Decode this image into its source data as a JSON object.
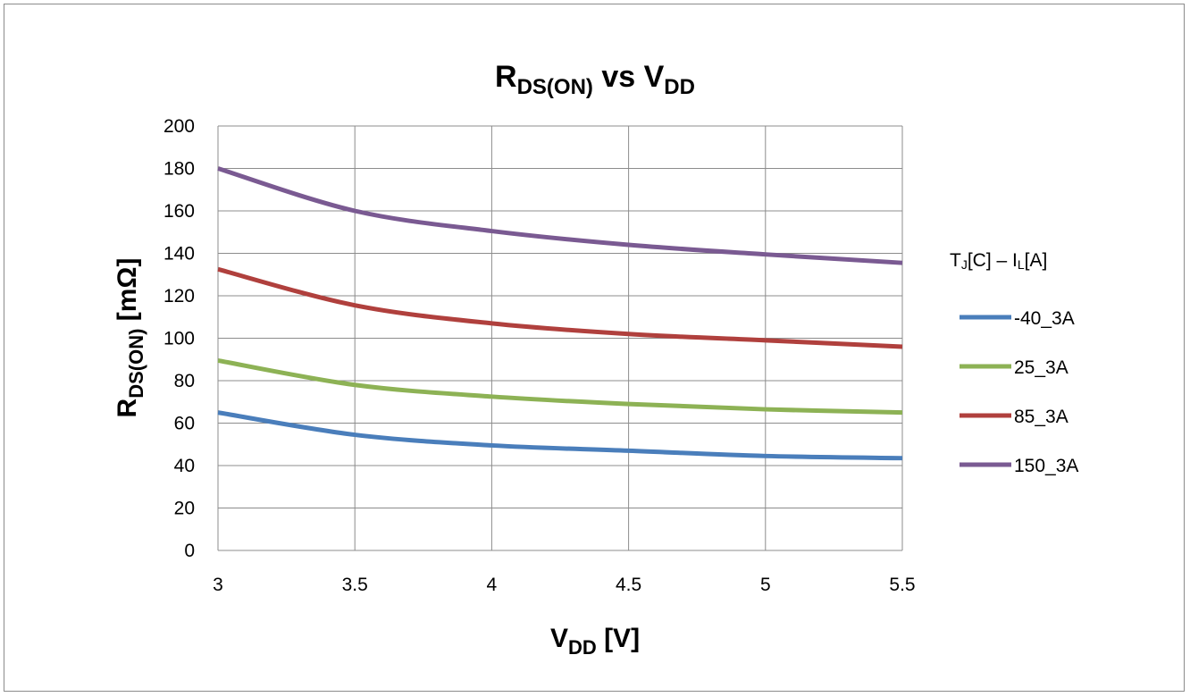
{
  "chart_data": {
    "type": "line",
    "title": {
      "main": "R",
      "main_sub": "DS(ON)",
      "mid": " vs V",
      "mid_sub": "DD"
    },
    "xlabel": {
      "main": "V",
      "sub": "DD",
      "unit": " [V]"
    },
    "ylabel": {
      "main": "R",
      "sub": "DS(ON)",
      "unit": " [mΩ]"
    },
    "x": [
      3,
      3.5,
      4,
      4.5,
      5,
      5.5
    ],
    "xlim": [
      3,
      5.5
    ],
    "ylim": [
      0,
      200
    ],
    "xticks": [
      "3",
      "3.5",
      "4",
      "4.5",
      "5",
      "5.5"
    ],
    "yticks": [
      "0",
      "20",
      "40",
      "60",
      "80",
      "100",
      "120",
      "140",
      "160",
      "180",
      "200"
    ],
    "grid": true,
    "legend": {
      "placement": "right",
      "title": {
        "a": "T",
        "a_sub": "J",
        "b": "[C] – I",
        "b_sub": "L",
        "c": "[A]"
      }
    },
    "series": [
      {
        "name": "-40_3A",
        "color": "#4a7ebb",
        "values": [
          65,
          54.5,
          49.5,
          47,
          44.5,
          43.5
        ]
      },
      {
        "name": "25_3A",
        "color": "#8db255",
        "values": [
          89.5,
          78,
          72.5,
          69,
          66.5,
          65
        ]
      },
      {
        "name": "85_3A",
        "color": "#b0403d",
        "values": [
          132.5,
          115.5,
          107,
          102,
          99,
          96
        ]
      },
      {
        "name": "150_3A",
        "color": "#7a5a92",
        "values": [
          180,
          160,
          150.5,
          144,
          139.5,
          135.5
        ]
      }
    ]
  }
}
